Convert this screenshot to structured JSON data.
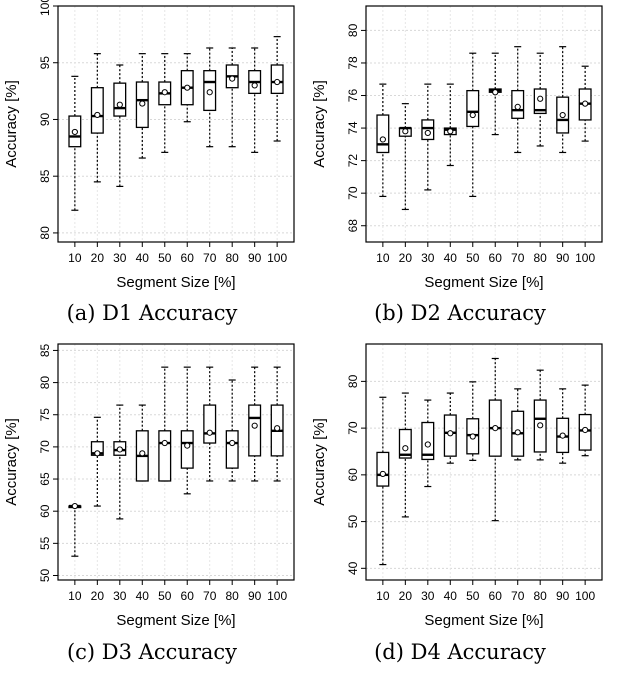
{
  "chart_data": [
    {
      "type": "box",
      "caption": "(a) D1 Accuracy",
      "xlabel": "Segment Size [%]",
      "ylabel": "Accuracy [%]",
      "categories": [
        "10",
        "20",
        "30",
        "40",
        "50",
        "60",
        "70",
        "80",
        "90",
        "100"
      ],
      "ylim": [
        79.2,
        100
      ],
      "yticks": [
        80,
        85,
        90,
        95,
        100
      ],
      "grid": true,
      "boxes": [
        {
          "min": 82.0,
          "q1": 87.6,
          "median": 88.5,
          "q3": 90.3,
          "max": 93.8,
          "mean": 88.9
        },
        {
          "min": 84.5,
          "q1": 88.8,
          "median": 90.3,
          "q3": 92.8,
          "max": 95.8,
          "mean": 90.4
        },
        {
          "min": 84.1,
          "q1": 90.3,
          "median": 91.0,
          "q3": 93.2,
          "max": 94.8,
          "mean": 91.3
        },
        {
          "min": 86.6,
          "q1": 89.3,
          "median": 91.7,
          "q3": 93.3,
          "max": 95.8,
          "mean": 91.4
        },
        {
          "min": 87.1,
          "q1": 91.3,
          "median": 92.3,
          "q3": 93.3,
          "max": 95.8,
          "mean": 92.4
        },
        {
          "min": 89.8,
          "q1": 91.3,
          "median": 92.8,
          "q3": 94.3,
          "max": 95.8,
          "mean": 92.8
        },
        {
          "min": 87.6,
          "q1": 90.8,
          "median": 93.3,
          "q3": 94.3,
          "max": 96.3,
          "mean": 92.4
        },
        {
          "min": 87.6,
          "q1": 92.8,
          "median": 93.8,
          "q3": 94.8,
          "max": 96.3,
          "mean": 93.6
        },
        {
          "min": 87.1,
          "q1": 92.3,
          "median": 93.3,
          "q3": 94.3,
          "max": 96.3,
          "mean": 93.0
        },
        {
          "min": 88.1,
          "q1": 92.3,
          "median": 93.3,
          "q3": 94.8,
          "max": 97.3,
          "mean": 93.3
        }
      ]
    },
    {
      "type": "box",
      "caption": "(b) D2 Accuracy",
      "xlabel": "Segment Size [%]",
      "ylabel": "Accuracy [%]",
      "categories": [
        "10",
        "20",
        "30",
        "40",
        "50",
        "60",
        "70",
        "80",
        "90",
        "100"
      ],
      "ylim": [
        67,
        81.5
      ],
      "yticks": [
        68,
        70,
        72,
        74,
        76,
        78,
        80
      ],
      "grid": true,
      "boxes": [
        {
          "min": 69.8,
          "q1": 72.5,
          "median": 73.0,
          "q3": 74.8,
          "max": 76.7,
          "mean": 73.3
        },
        {
          "min": 69.0,
          "q1": 73.5,
          "median": 74.0,
          "q3": 74.0,
          "max": 75.5,
          "mean": 73.8
        },
        {
          "min": 70.2,
          "q1": 73.3,
          "median": 74.0,
          "q3": 74.5,
          "max": 76.7,
          "mean": 73.7
        },
        {
          "min": 71.7,
          "q1": 73.6,
          "median": 73.9,
          "q3": 74.0,
          "max": 76.7,
          "mean": 73.8
        },
        {
          "min": 69.8,
          "q1": 74.1,
          "median": 75.0,
          "q3": 76.3,
          "max": 78.6,
          "mean": 74.8
        },
        {
          "min": 73.6,
          "q1": 76.2,
          "median": 76.3,
          "q3": 76.4,
          "max": 78.6,
          "mean": 76.2
        },
        {
          "min": 72.5,
          "q1": 74.6,
          "median": 75.1,
          "q3": 76.3,
          "max": 79.0,
          "mean": 75.3
        },
        {
          "min": 72.9,
          "q1": 74.9,
          "median": 75.1,
          "q3": 76.4,
          "max": 78.6,
          "mean": 75.8
        },
        {
          "min": 72.5,
          "q1": 73.7,
          "median": 74.5,
          "q3": 75.9,
          "max": 79.0,
          "mean": 74.8
        },
        {
          "min": 73.2,
          "q1": 74.5,
          "median": 75.5,
          "q3": 76.4,
          "max": 77.8,
          "mean": 75.5
        }
      ]
    },
    {
      "type": "box",
      "caption": "(c) D3 Accuracy",
      "xlabel": "Segment Size [%]",
      "ylabel": "Accuracy [%]",
      "categories": [
        "10",
        "20",
        "30",
        "40",
        "50",
        "60",
        "70",
        "80",
        "90",
        "100"
      ],
      "ylim": [
        49.3,
        86
      ],
      "yticks": [
        50,
        55,
        60,
        65,
        70,
        75,
        80,
        85
      ],
      "grid": true,
      "boxes": [
        {
          "min": 53.0,
          "q1": 60.8,
          "median": 60.8,
          "q3": 60.8,
          "max": 60.8,
          "mean": 60.8
        },
        {
          "min": 60.8,
          "q1": 68.7,
          "median": 69.0,
          "q3": 70.8,
          "max": 74.6,
          "mean": 69.0
        },
        {
          "min": 58.8,
          "q1": 68.7,
          "median": 69.5,
          "q3": 70.8,
          "max": 76.5,
          "mean": 69.6
        },
        {
          "min": 64.7,
          "q1": 64.7,
          "median": 68.6,
          "q3": 72.5,
          "max": 76.5,
          "mean": 69.0
        },
        {
          "min": 64.7,
          "q1": 64.7,
          "median": 70.6,
          "q3": 72.5,
          "max": 82.4,
          "mean": 70.6
        },
        {
          "min": 62.7,
          "q1": 66.7,
          "median": 70.6,
          "q3": 72.5,
          "max": 82.4,
          "mean": 70.2
        },
        {
          "min": 64.7,
          "q1": 70.6,
          "median": 72.1,
          "q3": 76.5,
          "max": 82.4,
          "mean": 72.2
        },
        {
          "min": 64.7,
          "q1": 66.7,
          "median": 70.6,
          "q3": 72.5,
          "max": 80.4,
          "mean": 70.6
        },
        {
          "min": 64.7,
          "q1": 68.6,
          "median": 74.5,
          "q3": 76.5,
          "max": 82.4,
          "mean": 73.3
        },
        {
          "min": 64.7,
          "q1": 68.6,
          "median": 72.5,
          "q3": 76.5,
          "max": 82.4,
          "mean": 72.9
        }
      ]
    },
    {
      "type": "box",
      "caption": "(d) D4 Accuracy",
      "xlabel": "Segment Size [%]",
      "ylabel": "Accuracy [%]",
      "categories": [
        "10",
        "20",
        "30",
        "40",
        "50",
        "60",
        "70",
        "80",
        "90",
        "100"
      ],
      "ylim": [
        37.5,
        88
      ],
      "yticks": [
        40,
        50,
        60,
        70,
        80
      ],
      "grid": true,
      "boxes": [
        {
          "min": 40.8,
          "q1": 57.6,
          "median": 60.0,
          "q3": 64.8,
          "max": 76.6,
          "mean": 60.2
        },
        {
          "min": 51.0,
          "q1": 63.6,
          "median": 64.3,
          "q3": 69.7,
          "max": 77.5,
          "mean": 65.7
        },
        {
          "min": 57.5,
          "q1": 63.3,
          "median": 64.3,
          "q3": 71.2,
          "max": 76.0,
          "mean": 66.5
        },
        {
          "min": 62.5,
          "q1": 64.0,
          "median": 69.0,
          "q3": 72.8,
          "max": 77.5,
          "mean": 68.9
        },
        {
          "min": 63.1,
          "q1": 64.5,
          "median": 68.5,
          "q3": 72.0,
          "max": 79.9,
          "mean": 68.2
        },
        {
          "min": 50.2,
          "q1": 64.0,
          "median": 70.0,
          "q3": 76.0,
          "max": 84.9,
          "mean": 70.0
        },
        {
          "min": 63.2,
          "q1": 64.0,
          "median": 68.9,
          "q3": 73.6,
          "max": 78.4,
          "mean": 69.1
        },
        {
          "min": 63.2,
          "q1": 64.9,
          "median": 72.0,
          "q3": 76.0,
          "max": 82.4,
          "mean": 70.6
        },
        {
          "min": 62.5,
          "q1": 64.8,
          "median": 68.2,
          "q3": 72.1,
          "max": 78.4,
          "mean": 68.4
        },
        {
          "min": 64.1,
          "q1": 65.3,
          "median": 69.5,
          "q3": 72.9,
          "max": 79.2,
          "mean": 69.6
        }
      ]
    }
  ]
}
